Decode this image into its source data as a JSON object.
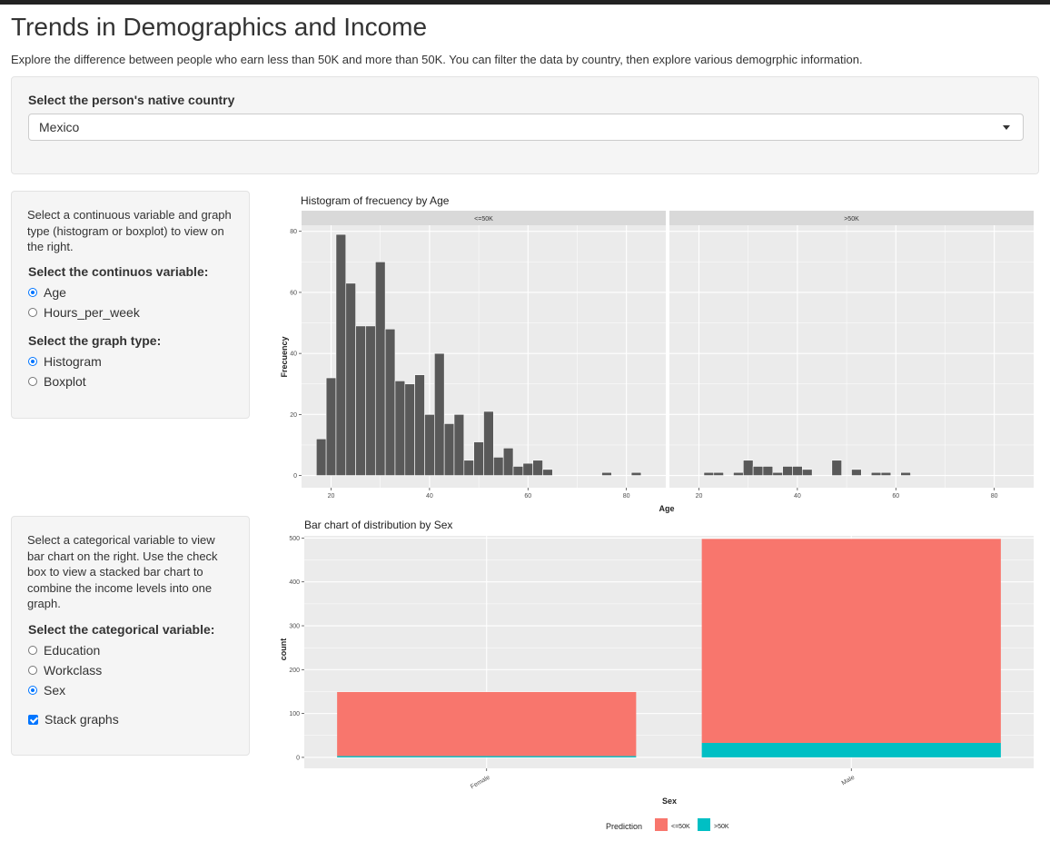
{
  "page": {
    "title": "Trends in Demographics and Income",
    "subtitle": "Explore the difference between people who earn less than 50K and more than 50K. You can filter the data by country, then explore various demogrphic information."
  },
  "country_panel": {
    "label": "Select the person's native country",
    "selected": "Mexico"
  },
  "continuous_panel": {
    "description": "Select a continuous variable and graph type (histogram or boxplot) to view on the right.",
    "variable_label": "Select the continuos variable:",
    "variable_options": [
      {
        "label": "Age",
        "selected": true
      },
      {
        "label": "Hours_per_week",
        "selected": false
      }
    ],
    "graph_label": "Select the graph type:",
    "graph_options": [
      {
        "label": "Histogram",
        "selected": true
      },
      {
        "label": "Boxplot",
        "selected": false
      }
    ]
  },
  "categorical_panel": {
    "description": "Select a categorical variable to view bar chart on the right. Use the check box to view a stacked bar chart to combine the income levels into one graph.",
    "variable_label": "Select the categorical variable:",
    "variable_options": [
      {
        "label": "Education",
        "selected": false
      },
      {
        "label": "Workclass",
        "selected": false
      },
      {
        "label": "Sex",
        "selected": true
      }
    ],
    "stack_label": "Stack graphs",
    "stack_checked": true
  },
  "chart_data": [
    {
      "type": "bar",
      "subtype": "histogram",
      "title": "Histogram of frecuency by Age",
      "xlabel": "Age",
      "ylabel": "Frecuency",
      "facets": [
        "<=50K",
        ">50K"
      ],
      "xlim": [
        14,
        88
      ],
      "ylim": [
        -4,
        82
      ],
      "x_ticks": [
        20,
        40,
        60,
        80
      ],
      "y_ticks": [
        0,
        20,
        40,
        60,
        80
      ],
      "bin_width": 2,
      "bar_color": "#595959",
      "panel_bg": "#ebebeb",
      "series": [
        {
          "name": "<=50K",
          "x": [
            18,
            20,
            22,
            24,
            26,
            28,
            30,
            32,
            34,
            36,
            38,
            40,
            42,
            44,
            46,
            48,
            50,
            52,
            54,
            56,
            58,
            60,
            62,
            64,
            66,
            68,
            70,
            72,
            74,
            76,
            78,
            80,
            82
          ],
          "values": [
            12,
            32,
            79,
            63,
            49,
            49,
            70,
            48,
            31,
            30,
            33,
            20,
            40,
            17,
            20,
            5,
            11,
            21,
            6,
            9,
            3,
            4,
            5,
            2,
            0,
            0,
            0,
            0,
            0,
            1,
            0,
            0,
            1
          ]
        },
        {
          "name": ">50K",
          "x": [
            20,
            22,
            24,
            26,
            28,
            30,
            32,
            34,
            36,
            38,
            40,
            42,
            44,
            46,
            48,
            50,
            52,
            54,
            56,
            58,
            60,
            62,
            64
          ],
          "values": [
            0,
            1,
            1,
            0,
            1,
            5,
            3,
            3,
            1,
            3,
            3,
            2,
            0,
            0,
            5,
            0,
            2,
            0,
            1,
            1,
            0,
            1,
            0
          ]
        }
      ]
    },
    {
      "type": "bar",
      "subtype": "stacked",
      "title": "Bar chart of distribution by Sex",
      "xlabel": "Sex",
      "ylabel": "count",
      "categories": [
        "Female",
        "Male"
      ],
      "ylim": [
        -25,
        505
      ],
      "y_ticks": [
        0,
        100,
        200,
        300,
        400,
        500
      ],
      "legend_title": "Prediction",
      "legend_position": "bottom",
      "series": [
        {
          "name": "<=50K",
          "color": "#F8766D",
          "values": [
            146,
            465
          ]
        },
        {
          "name": ">50K",
          "color": "#00BFC4",
          "values": [
            3,
            33
          ]
        }
      ]
    }
  ]
}
